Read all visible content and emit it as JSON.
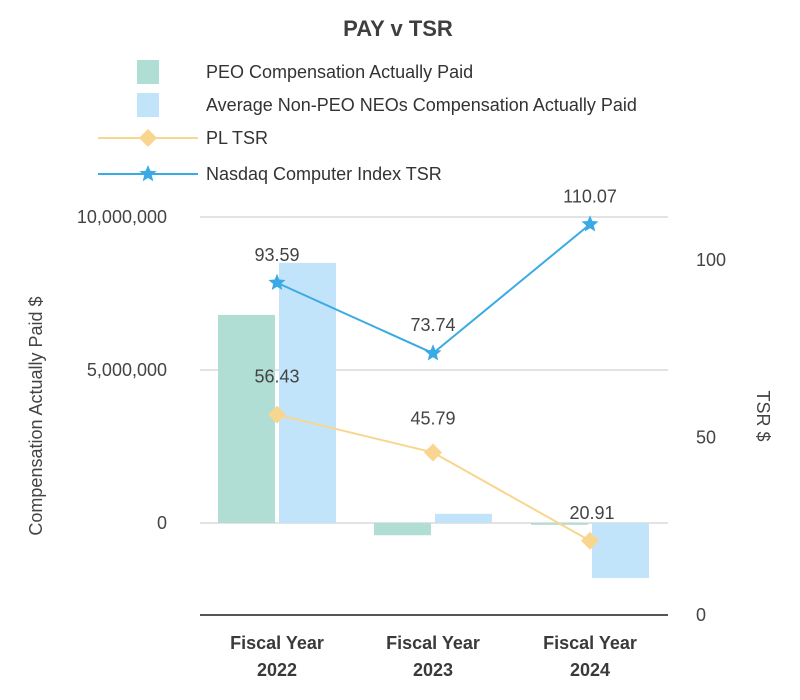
{
  "chart_data": {
    "type": "bar",
    "title": "PAY v TSR",
    "categories": [
      "Fiscal Year 2022",
      "Fiscal Year 2023",
      "Fiscal Year 2024"
    ],
    "category_lines": [
      [
        "Fiscal Year",
        "2022"
      ],
      [
        "Fiscal Year",
        "2023"
      ],
      [
        "Fiscal Year",
        "2024"
      ]
    ],
    "ylabel": "Compensation Actually Paid $",
    "y2label": "TSR $",
    "ylim": [
      -2700000,
      10000000
    ],
    "y2lim": [
      0,
      110
    ],
    "yticks": [
      0,
      5000000,
      10000000
    ],
    "ytick_labels": [
      "0",
      "5,000,000",
      "10,000,000"
    ],
    "y2ticks": [
      0,
      50,
      100
    ],
    "y2tick_labels": [
      "0",
      "50",
      "100"
    ],
    "bar_series": [
      {
        "name": "PEO Compensation Actually Paid",
        "color": "#b0ded4",
        "values": [
          6800000,
          -400000,
          -60000
        ]
      },
      {
        "name": "Average Non-PEO NEOs Compensation Actually Paid",
        "color": "#c2e4fb",
        "values": [
          8500000,
          300000,
          -1800000
        ]
      }
    ],
    "line_series": [
      {
        "name": "PL TSR",
        "color": "#f9d68f",
        "marker": "diamond",
        "values": [
          56.43,
          45.79,
          20.91
        ],
        "labels": [
          "56.43",
          "45.79",
          "20.91"
        ]
      },
      {
        "name": "Nasdaq Computer Index TSR",
        "color": "#3aaae5",
        "marker": "star",
        "values": [
          93.59,
          73.74,
          110.07
        ],
        "labels": [
          "93.59",
          "73.74",
          "110.07"
        ]
      }
    ],
    "legend_position": "top",
    "grid": true
  }
}
